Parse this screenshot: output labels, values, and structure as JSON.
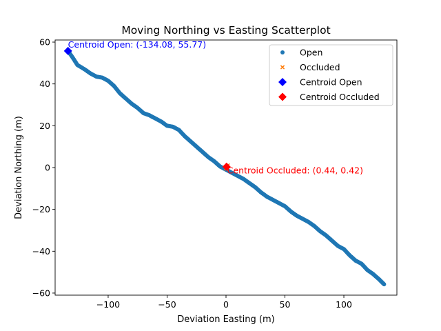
{
  "chart_data": {
    "type": "scatter",
    "title": "Moving Northing vs Easting Scatterplot",
    "xlabel": "Deviation Easting (m)",
    "ylabel": "Deviation Northing (m)",
    "xlim": [
      -145,
      145
    ],
    "ylim": [
      -61,
      61
    ],
    "xticks": [
      -100,
      -50,
      0,
      50,
      100
    ],
    "xtick_labels": [
      "−100",
      "−50",
      "0",
      "50",
      "100"
    ],
    "yticks": [
      -60,
      -40,
      -20,
      0,
      20,
      40,
      60
    ],
    "ytick_labels": [
      "−60",
      "−40",
      "−20",
      "0",
      "20",
      "40",
      "60"
    ],
    "grid": false,
    "legend_position": "top-right",
    "series": [
      {
        "name": "Open",
        "marker": "dot",
        "color": "#1f77b4",
        "points": [
          [
            -134.1,
            55.8
          ],
          [
            -130.0,
            52.5
          ],
          [
            -126.0,
            49.0
          ],
          [
            -120.0,
            47.0
          ],
          [
            -115.0,
            45.0
          ],
          [
            -110.0,
            43.5
          ],
          [
            -105.0,
            43.0
          ],
          [
            -100.0,
            41.5
          ],
          [
            -95.0,
            39.0
          ],
          [
            -90.0,
            35.5
          ],
          [
            -85.0,
            33.0
          ],
          [
            -80.0,
            30.5
          ],
          [
            -75.0,
            28.5
          ],
          [
            -70.0,
            26.0
          ],
          [
            -65.0,
            25.0
          ],
          [
            -60.0,
            23.5
          ],
          [
            -55.0,
            22.0
          ],
          [
            -50.0,
            20.0
          ],
          [
            -45.0,
            19.5
          ],
          [
            -40.0,
            18.0
          ],
          [
            -35.0,
            15.0
          ],
          [
            -30.0,
            12.5
          ],
          [
            -25.0,
            10.0
          ],
          [
            -20.0,
            7.5
          ],
          [
            -15.0,
            5.0
          ],
          [
            -10.0,
            3.0
          ],
          [
            -5.0,
            0.5
          ],
          [
            0.0,
            -1.0
          ],
          [
            5.0,
            -2.5
          ],
          [
            10.0,
            -4.0
          ],
          [
            15.0,
            -5.5
          ],
          [
            20.0,
            -7.5
          ],
          [
            25.0,
            -9.5
          ],
          [
            30.0,
            -12.0
          ],
          [
            35.0,
            -14.0
          ],
          [
            40.0,
            -15.5
          ],
          [
            45.0,
            -17.0
          ],
          [
            50.0,
            -18.5
          ],
          [
            55.0,
            -21.0
          ],
          [
            60.0,
            -23.0
          ],
          [
            65.0,
            -24.5
          ],
          [
            70.0,
            -26.0
          ],
          [
            75.0,
            -28.0
          ],
          [
            80.0,
            -30.5
          ],
          [
            85.0,
            -32.5
          ],
          [
            90.0,
            -35.0
          ],
          [
            95.0,
            -37.5
          ],
          [
            100.0,
            -39.0
          ],
          [
            105.0,
            -42.0
          ],
          [
            110.0,
            -44.5
          ],
          [
            115.0,
            -46.0
          ],
          [
            120.0,
            -49.0
          ],
          [
            125.0,
            -51.0
          ],
          [
            130.0,
            -53.5
          ],
          [
            134.1,
            -55.8
          ]
        ]
      },
      {
        "name": "Occluded",
        "marker": "x",
        "color": "#ff7f0e",
        "points": [
          [
            0.0,
            -0.5
          ],
          [
            1.5,
            1.0
          ]
        ]
      },
      {
        "name": "Centroid Open",
        "marker": "diamond",
        "color": "#0000ff",
        "points": [
          [
            -134.08,
            55.77
          ]
        ]
      },
      {
        "name": "Centroid Occluded",
        "marker": "diamond",
        "color": "#ff0000",
        "points": [
          [
            0.44,
            0.42
          ]
        ]
      }
    ],
    "annotations": [
      {
        "text": "Centroid Open: (-134.08, 55.77)",
        "x": -134.08,
        "y": 55.77,
        "color": "#0000ff"
      },
      {
        "text": "Centroid Occluded: (0.44, 0.42)",
        "x": 0.44,
        "y": 0.42,
        "color": "#ff0000"
      }
    ]
  }
}
